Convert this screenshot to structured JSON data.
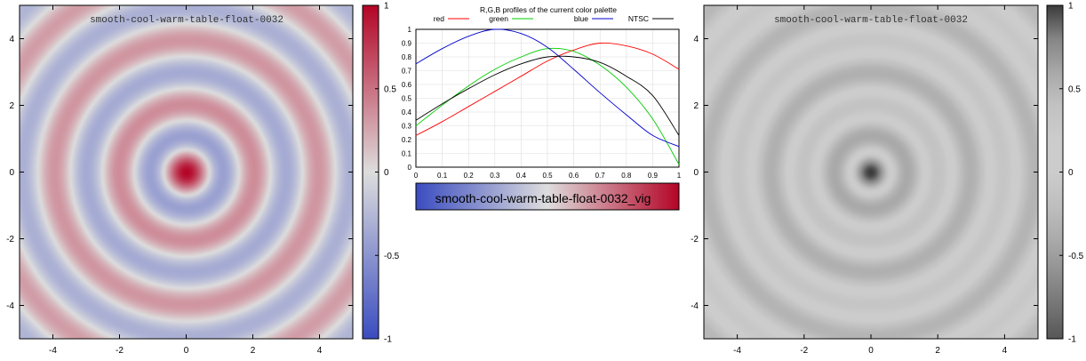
{
  "chart_data": [
    {
      "type": "heatmap",
      "title": "smooth-cool-warm-table-float-0032",
      "xlabel": "",
      "ylabel": "",
      "xlim": [
        -5,
        5
      ],
      "ylim": [
        -5,
        5
      ],
      "x_ticks": [
        "-4",
        "-2",
        "0",
        "2",
        "4"
      ],
      "y_ticks": [
        "-4",
        "-2",
        "0",
        "2",
        "4"
      ],
      "colorbar": {
        "range": [
          -1,
          1
        ],
        "ticks": [
          "-1",
          "-0.5",
          "0",
          "0.5",
          "1"
        ]
      },
      "palette": "smooth-cool-warm",
      "colors": {
        "low": "#3b4cc0",
        "mid": "#dddddd",
        "high": "#b40426"
      }
    },
    {
      "type": "line",
      "title": "R,G,B profiles of the current color palette",
      "xlabel": "",
      "ylabel": "",
      "xlim": [
        0,
        1
      ],
      "ylim": [
        0,
        1
      ],
      "x_ticks": [
        "0",
        "0.1",
        "0.2",
        "0.3",
        "0.4",
        "0.5",
        "0.6",
        "0.7",
        "0.8",
        "0.9",
        "1"
      ],
      "y_ticks": [
        "0",
        "0.1",
        "0.2",
        "0.3",
        "0.4",
        "0.5",
        "0.6",
        "0.7",
        "0.8",
        "0.9",
        "1"
      ],
      "legend": "top",
      "x": [
        0,
        0.1,
        0.2,
        0.3,
        0.4,
        0.5,
        0.6,
        0.7,
        0.8,
        0.9,
        1.0
      ],
      "series": [
        {
          "name": "red",
          "color": "#ff0000",
          "values": [
            0.23,
            0.33,
            0.44,
            0.55,
            0.66,
            0.77,
            0.85,
            0.9,
            0.88,
            0.82,
            0.71
          ]
        },
        {
          "name": "green",
          "color": "#00cc00",
          "values": [
            0.3,
            0.45,
            0.59,
            0.71,
            0.8,
            0.86,
            0.84,
            0.74,
            0.58,
            0.35,
            0.02
          ]
        },
        {
          "name": "blue",
          "color": "#0000cc",
          "values": [
            0.75,
            0.86,
            0.95,
            1.0,
            0.97,
            0.87,
            0.71,
            0.54,
            0.38,
            0.23,
            0.15
          ]
        },
        {
          "name": "NTSC",
          "color": "#000000",
          "values": [
            0.34,
            0.46,
            0.57,
            0.67,
            0.75,
            0.8,
            0.8,
            0.76,
            0.66,
            0.52,
            0.23
          ]
        }
      ],
      "colorbar_label": "smooth-cool-warm-table-float-0032_vig"
    },
    {
      "type": "heatmap",
      "title": "smooth-cool-warm-table-float-0032",
      "xlabel": "",
      "ylabel": "",
      "xlim": [
        -5,
        5
      ],
      "ylim": [
        -5,
        5
      ],
      "x_ticks": [
        "-4",
        "-2",
        "0",
        "2",
        "4"
      ],
      "y_ticks": [
        "-4",
        "-2",
        "0",
        "2",
        "4"
      ],
      "colorbar": {
        "range": [
          -1,
          1
        ],
        "ticks": [
          "-1",
          "-0.5",
          "0",
          "0.5",
          "1"
        ]
      },
      "palette": "grayscale (NTSC)",
      "colors": {
        "low": "#3a3a3a",
        "mid": "#cdcdcd",
        "high": "#303030"
      }
    }
  ]
}
